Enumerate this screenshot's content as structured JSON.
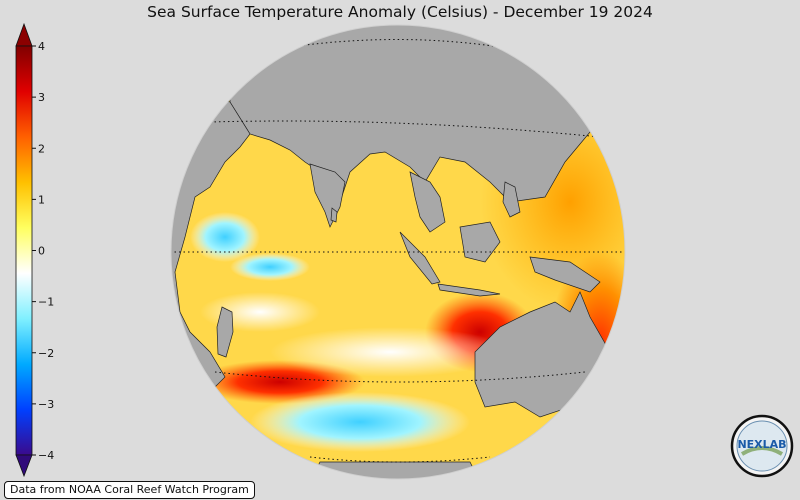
{
  "title": "Sea Surface Temperature Anomaly (Celsius) - December 19 2024",
  "colorbar": {
    "ticks": [
      {
        "value": 4,
        "label": "4"
      },
      {
        "value": 3,
        "label": "3"
      },
      {
        "value": 2,
        "label": "2"
      },
      {
        "value": 1,
        "label": "1"
      },
      {
        "value": 0,
        "label": "0"
      },
      {
        "value": -1,
        "label": "−1"
      },
      {
        "value": -2,
        "label": "−2"
      },
      {
        "value": -3,
        "label": "−3"
      },
      {
        "value": -4,
        "label": "−4"
      }
    ],
    "range": [
      -4,
      4
    ],
    "colors": [
      "#3a0a8c",
      "#0040ff",
      "#00aaff",
      "#80f0ff",
      "#ffffff",
      "#ffff60",
      "#ffc000",
      "#ff6000",
      "#e00000",
      "#800000"
    ]
  },
  "credit": "Data from NOAA Coral Reef Watch Program",
  "logo": {
    "text": "NEXLAB",
    "icon": "nexlab-logo-icon"
  },
  "colors": {
    "background": "#dcdcdc",
    "land": "#a8a8a8",
    "ocean_base": "#ffd84a"
  }
}
